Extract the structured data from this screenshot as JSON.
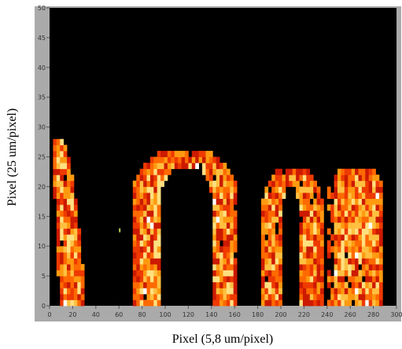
{
  "chart_data": {
    "type": "heatmap",
    "title": "",
    "xlabel": "Pixel (5,8 um/pixel)",
    "ylabel": "Pixel (25 um/pixel)",
    "xlim": [
      0,
      300
    ],
    "ylim": [
      0,
      50
    ],
    "x_ticks": [
      0,
      20,
      40,
      60,
      80,
      100,
      120,
      140,
      160,
      180,
      200,
      220,
      240,
      260,
      280,
      300
    ],
    "y_ticks": [
      0,
      5,
      10,
      15,
      20,
      25,
      30,
      35,
      40,
      45,
      50
    ],
    "grid": false,
    "background_color": "#000000",
    "frame_color": "#aaaaaa",
    "colormap": [
      "#cc1a00",
      "#ee3a00",
      "#ff6a00",
      "#ff9a10",
      "#ffc040",
      "#ffe080",
      "#ffffff"
    ],
    "regions": [
      {
        "name": "arc-1",
        "kind": "leg",
        "x_bottom": [
          8,
          30
        ],
        "x_top": [
          1,
          15
        ],
        "y_range": [
          0,
          28
        ]
      },
      {
        "name": "arch-2",
        "kind": "arch",
        "x_outer": [
          73,
          162
        ],
        "x_inner": [
          95,
          141
        ],
        "y_top_outer": 26.5,
        "y_top_inner": 23.5
      },
      {
        "name": "arch-3",
        "kind": "arch",
        "x_outer": [
          183,
          236
        ],
        "x_inner": [
          200,
          217
        ],
        "y_top_outer": 23.5,
        "y_top_inner": 20
      },
      {
        "name": "block-4",
        "kind": "block",
        "x_range": [
          242,
          289
        ],
        "y_top": 23,
        "notch": [
          238,
          250,
          4,
          12
        ]
      }
    ],
    "speckle_point": [
      60,
      12
    ]
  }
}
